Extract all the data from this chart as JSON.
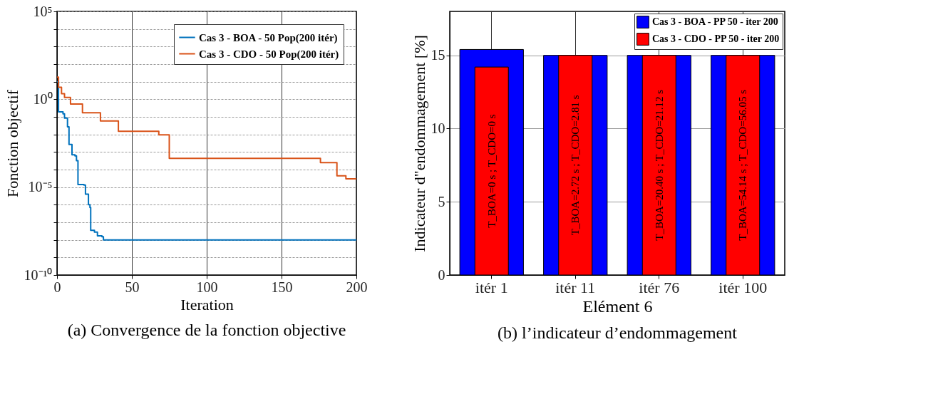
{
  "chart_data": [
    {
      "type": "step",
      "xlabel": "Iteration",
      "ylabel": "Fonction objectif",
      "log": "y",
      "grid": true,
      "legend": "top right",
      "marker": "none",
      "line_style": "solid",
      "xlim": [
        0,
        200
      ],
      "xticks": [
        0,
        50,
        100,
        150,
        200
      ],
      "ylim": [
        1e-10,
        100000.0
      ],
      "yticks": [
        {
          "value": 1e-10,
          "label": "10⁻¹⁰"
        },
        {
          "value": 1e-09,
          "label": null
        },
        {
          "value": 1e-08,
          "label": null
        },
        {
          "value": 1e-07,
          "label": null
        },
        {
          "value": 1e-06,
          "label": null
        },
        {
          "value": 1e-05,
          "label": "10⁻⁵"
        },
        {
          "value": 0.0001,
          "label": null
        },
        {
          "value": 0.001,
          "label": null
        },
        {
          "value": 0.01,
          "label": null
        },
        {
          "value": 0.1,
          "label": null
        },
        {
          "value": 1,
          "label": "10⁰"
        },
        {
          "value": 10,
          "label": null
        },
        {
          "value": 100,
          "label": null
        },
        {
          "value": 1000,
          "label": null
        },
        {
          "value": 10000,
          "label": null
        },
        {
          "value": 100000,
          "label": "10⁵"
        }
      ],
      "series": [
        {
          "name": "Cas 3 - BOA - 50 Pop(200 itér)",
          "color": "#0072bd",
          "x": [
            0,
            1,
            4,
            5,
            7,
            8,
            10,
            12,
            13,
            14,
            18,
            19,
            21,
            22,
            22.5,
            25,
            27,
            30,
            31,
            200
          ],
          "values": [
            10,
            0.19,
            0.15,
            0.085,
            0.027,
            0.0027,
            0.0007,
            0.0006,
            0.00032,
            1.4e-05,
            1.3e-05,
            4e-06,
            1e-06,
            7e-07,
            3.5e-08,
            2.8e-08,
            1.7e-08,
            1.5e-08,
            1e-08,
            1e-08
          ]
        },
        {
          "name": "Cas 3 - CDO - 50 Pop(200 itér)",
          "color": "#d95319",
          "x": [
            0,
            1,
            3,
            5,
            9,
            17,
            29,
            41,
            68,
            75,
            176,
            187,
            193,
            200
          ],
          "values": [
            18,
            4.8,
            2.1,
            1.26,
            0.54,
            0.17,
            0.058,
            0.015,
            0.0095,
            0.00043,
            0.00025,
            4.4e-05,
            3e-05,
            3e-05
          ]
        }
      ],
      "title": "(a) Convergence de la fonction objective"
    },
    {
      "type": "bar",
      "xlabel": "Elément 6",
      "ylabel": "Indicateur d\"endommagement [%]",
      "grid": true,
      "legend": "top right",
      "categories": [
        "itér 1",
        "itér 11",
        "itér 76",
        "itér 100"
      ],
      "ylim": [
        0,
        18
      ],
      "yticks": [
        0,
        5,
        10,
        15
      ],
      "series": [
        {
          "name": "Cas 3 - BOA - PP 50 - iter 200",
          "color": "#0000ff",
          "values": [
            15.4,
            15,
            15,
            15
          ]
        },
        {
          "name": "Cas 3 - CDO - PP 50 - iter 200",
          "color": "#ff0000",
          "values": [
            14.2,
            15,
            15,
            15
          ]
        }
      ],
      "title": "(b) l’indicateur d’endommagement",
      "annotations": [
        "T_BOA=0 s ; T_CDO=0 s",
        "T_BOA=2.72 s ; T_CDO=2.81 s",
        "T_BOA=20.40 s ; T_CDO=21.12 s",
        "T_BOA=54.14 s ; T_CDO=56.05 s"
      ]
    }
  ]
}
